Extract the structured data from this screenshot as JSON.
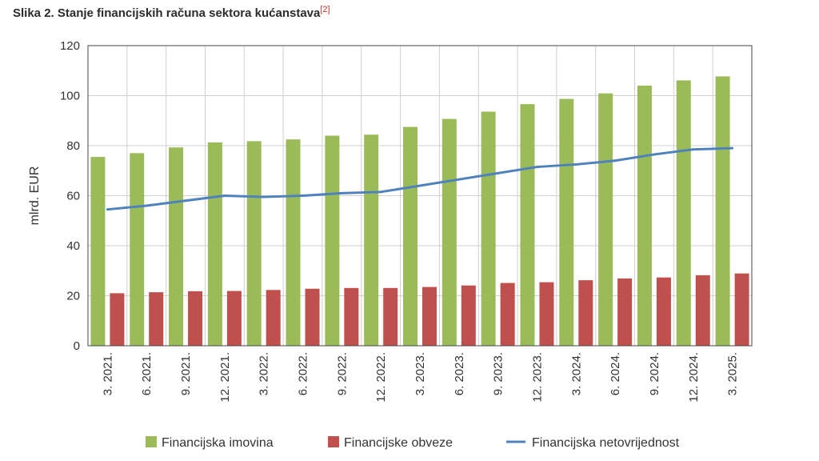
{
  "figure": {
    "title": "Slika 2. Stanje financijskih računa sektora kućanstava",
    "ref": "[2]"
  },
  "chart_data": {
    "type": "bar",
    "title": "Slika 2. Stanje financijskih računa sektora kućanstava",
    "xlabel": "",
    "ylabel": "mlrd. EUR",
    "ylim": [
      0,
      120
    ],
    "yticks": [
      0,
      20,
      40,
      60,
      80,
      100,
      120
    ],
    "grid": true,
    "legend_position": "bottom",
    "categories": [
      "3. 2021.",
      "6. 2021.",
      "9. 2021.",
      "12. 2021.",
      "3. 2022.",
      "6. 2022.",
      "9. 2022.",
      "12. 2022.",
      "3. 2023.",
      "6. 2023.",
      "9. 2023.",
      "12. 2023.",
      "3. 2024.",
      "6. 2024.",
      "9. 2024.",
      "12. 2024.",
      "3. 2025."
    ],
    "series": [
      {
        "name": "Financijska imovina",
        "kind": "bar",
        "color": "#9bbb59",
        "values": [
          75.5,
          77.0,
          79.3,
          81.3,
          81.8,
          82.5,
          84.0,
          84.4,
          87.5,
          90.7,
          93.6,
          96.6,
          98.7,
          100.9,
          104.0,
          106.1,
          107.7
        ]
      },
      {
        "name": "Financijske obveze",
        "kind": "bar",
        "color": "#c0504d",
        "values": [
          21.0,
          21.4,
          21.8,
          21.9,
          22.3,
          22.8,
          23.1,
          23.1,
          23.5,
          24.1,
          25.1,
          25.4,
          26.2,
          26.9,
          27.3,
          28.2,
          28.9
        ]
      },
      {
        "name": "Financijska netovrijednost",
        "kind": "line",
        "color": "#4f81bd",
        "values": [
          54.5,
          56.0,
          58.0,
          60.0,
          59.5,
          60.0,
          61.0,
          61.5,
          64.0,
          66.5,
          69.0,
          71.5,
          72.5,
          74.0,
          76.5,
          78.5,
          79.0
        ]
      }
    ]
  }
}
